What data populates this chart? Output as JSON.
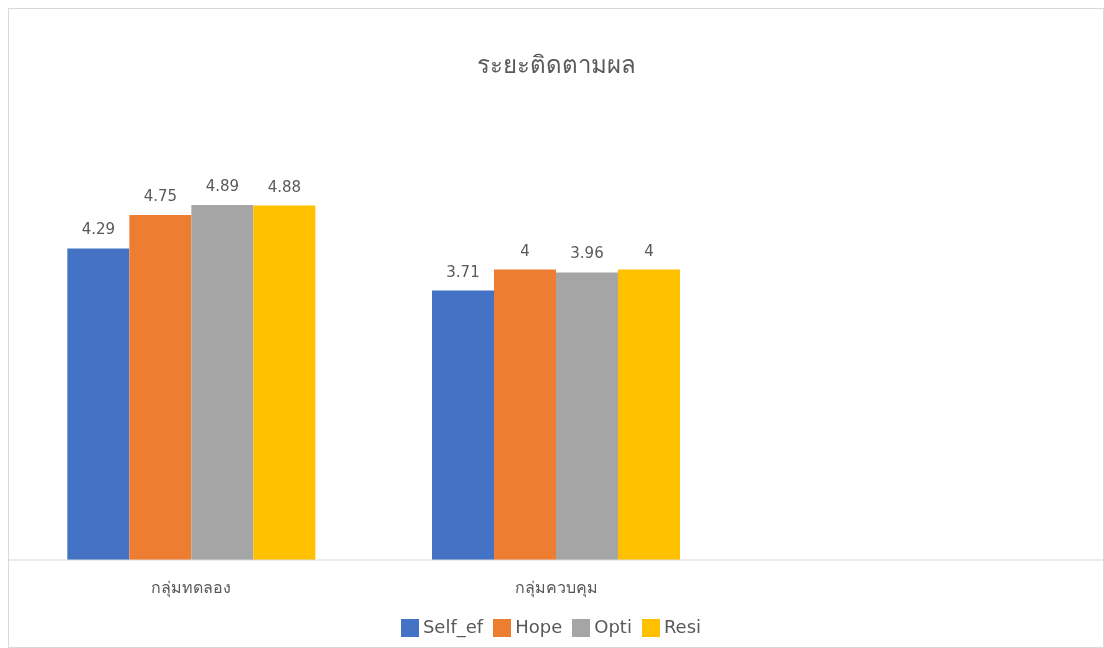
{
  "chart_data": {
    "type": "bar",
    "title": "ระยะติดตามผล",
    "categories": [
      "กลุ่มทดลอง",
      "กลุ่มควบคุม",
      null
    ],
    "series": [
      {
        "name": "Self_ef",
        "color": "#4472c4",
        "values": [
          4.29,
          3.71,
          null
        ]
      },
      {
        "name": "Hope",
        "color": "#ed7d31",
        "values": [
          4.75,
          4,
          null
        ]
      },
      {
        "name": "Opti",
        "color": "#a5a5a5",
        "values": [
          4.89,
          3.96,
          null
        ]
      },
      {
        "name": "Resi",
        "color": "#ffc000",
        "values": [
          4.88,
          4,
          null
        ]
      }
    ],
    "data_labels": true,
    "grid": false,
    "legend": "bottom",
    "tick_labels": "x"
  }
}
